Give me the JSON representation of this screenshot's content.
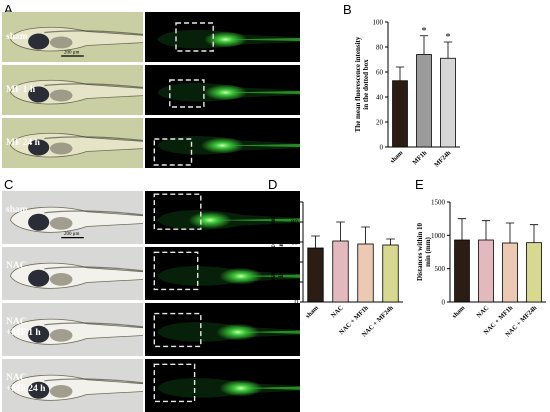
{
  "panel_letters": {
    "a": "A",
    "b": "B",
    "c": "C",
    "d": "D",
    "e": "E"
  },
  "panel_a": {
    "rows": [
      "sham",
      "MF 1 h",
      "MF 24 h"
    ],
    "scale_bar": "200 μm"
  },
  "panel_c": {
    "rows": [
      [
        "sham"
      ],
      [
        "NAC"
      ],
      [
        "NAC",
        "+MF 1 h"
      ],
      [
        "NAC",
        "+MF 24 h"
      ]
    ],
    "scale_bar": "200 μm"
  },
  "colors": {
    "bright_field_a": "#c9cfa2",
    "bright_field_c": "#d8d8d6",
    "fluor_bg": "#000000",
    "fluor_signal": "#3fd43a",
    "bar_dark": "#2b1c14",
    "bar_grey1": "#9b9b9b",
    "bar_grey2": "#d6d6d6",
    "bar_pink": "#e3b9bd",
    "bar_peach": "#ecc9b2",
    "bar_lime": "#d6d98f"
  },
  "chart_data": [
    {
      "panel": "B",
      "type": "bar",
      "ylabel": "The mean fluorescence intensity in the dotted box",
      "categories": [
        "sham",
        "MF1h",
        "MF24h"
      ],
      "values": [
        53,
        74,
        71
      ],
      "errors": [
        11,
        15,
        13
      ],
      "annotations": [
        "",
        "*",
        "*"
      ],
      "ylim": [
        0,
        100
      ],
      "yticks": [
        0,
        20,
        40,
        60,
        80,
        100
      ]
    },
    {
      "panel": "D",
      "type": "bar",
      "ylabel": "The mean fluorescence intensity in the dotted box",
      "categories": [
        "sham",
        "NAC",
        "NAC + MF1h",
        "NAC + MF24h"
      ],
      "values": [
        54,
        61,
        58,
        57
      ],
      "errors": [
        12,
        19,
        17,
        6
      ],
      "ylim": [
        0,
        100
      ],
      "yticks": [
        0,
        20,
        40,
        60,
        80,
        100
      ]
    },
    {
      "panel": "E",
      "type": "bar",
      "ylabel": "Distances within 10 min (mm)",
      "categories": [
        "sham",
        "NAC",
        "NAC + MF1h",
        "NAC + MF24h"
      ],
      "values": [
        930,
        930,
        885,
        890
      ],
      "errors": [
        320,
        290,
        300,
        270
      ],
      "ylim": [
        0,
        1500
      ],
      "yticks": [
        0,
        500,
        1000,
        1500
      ]
    }
  ]
}
